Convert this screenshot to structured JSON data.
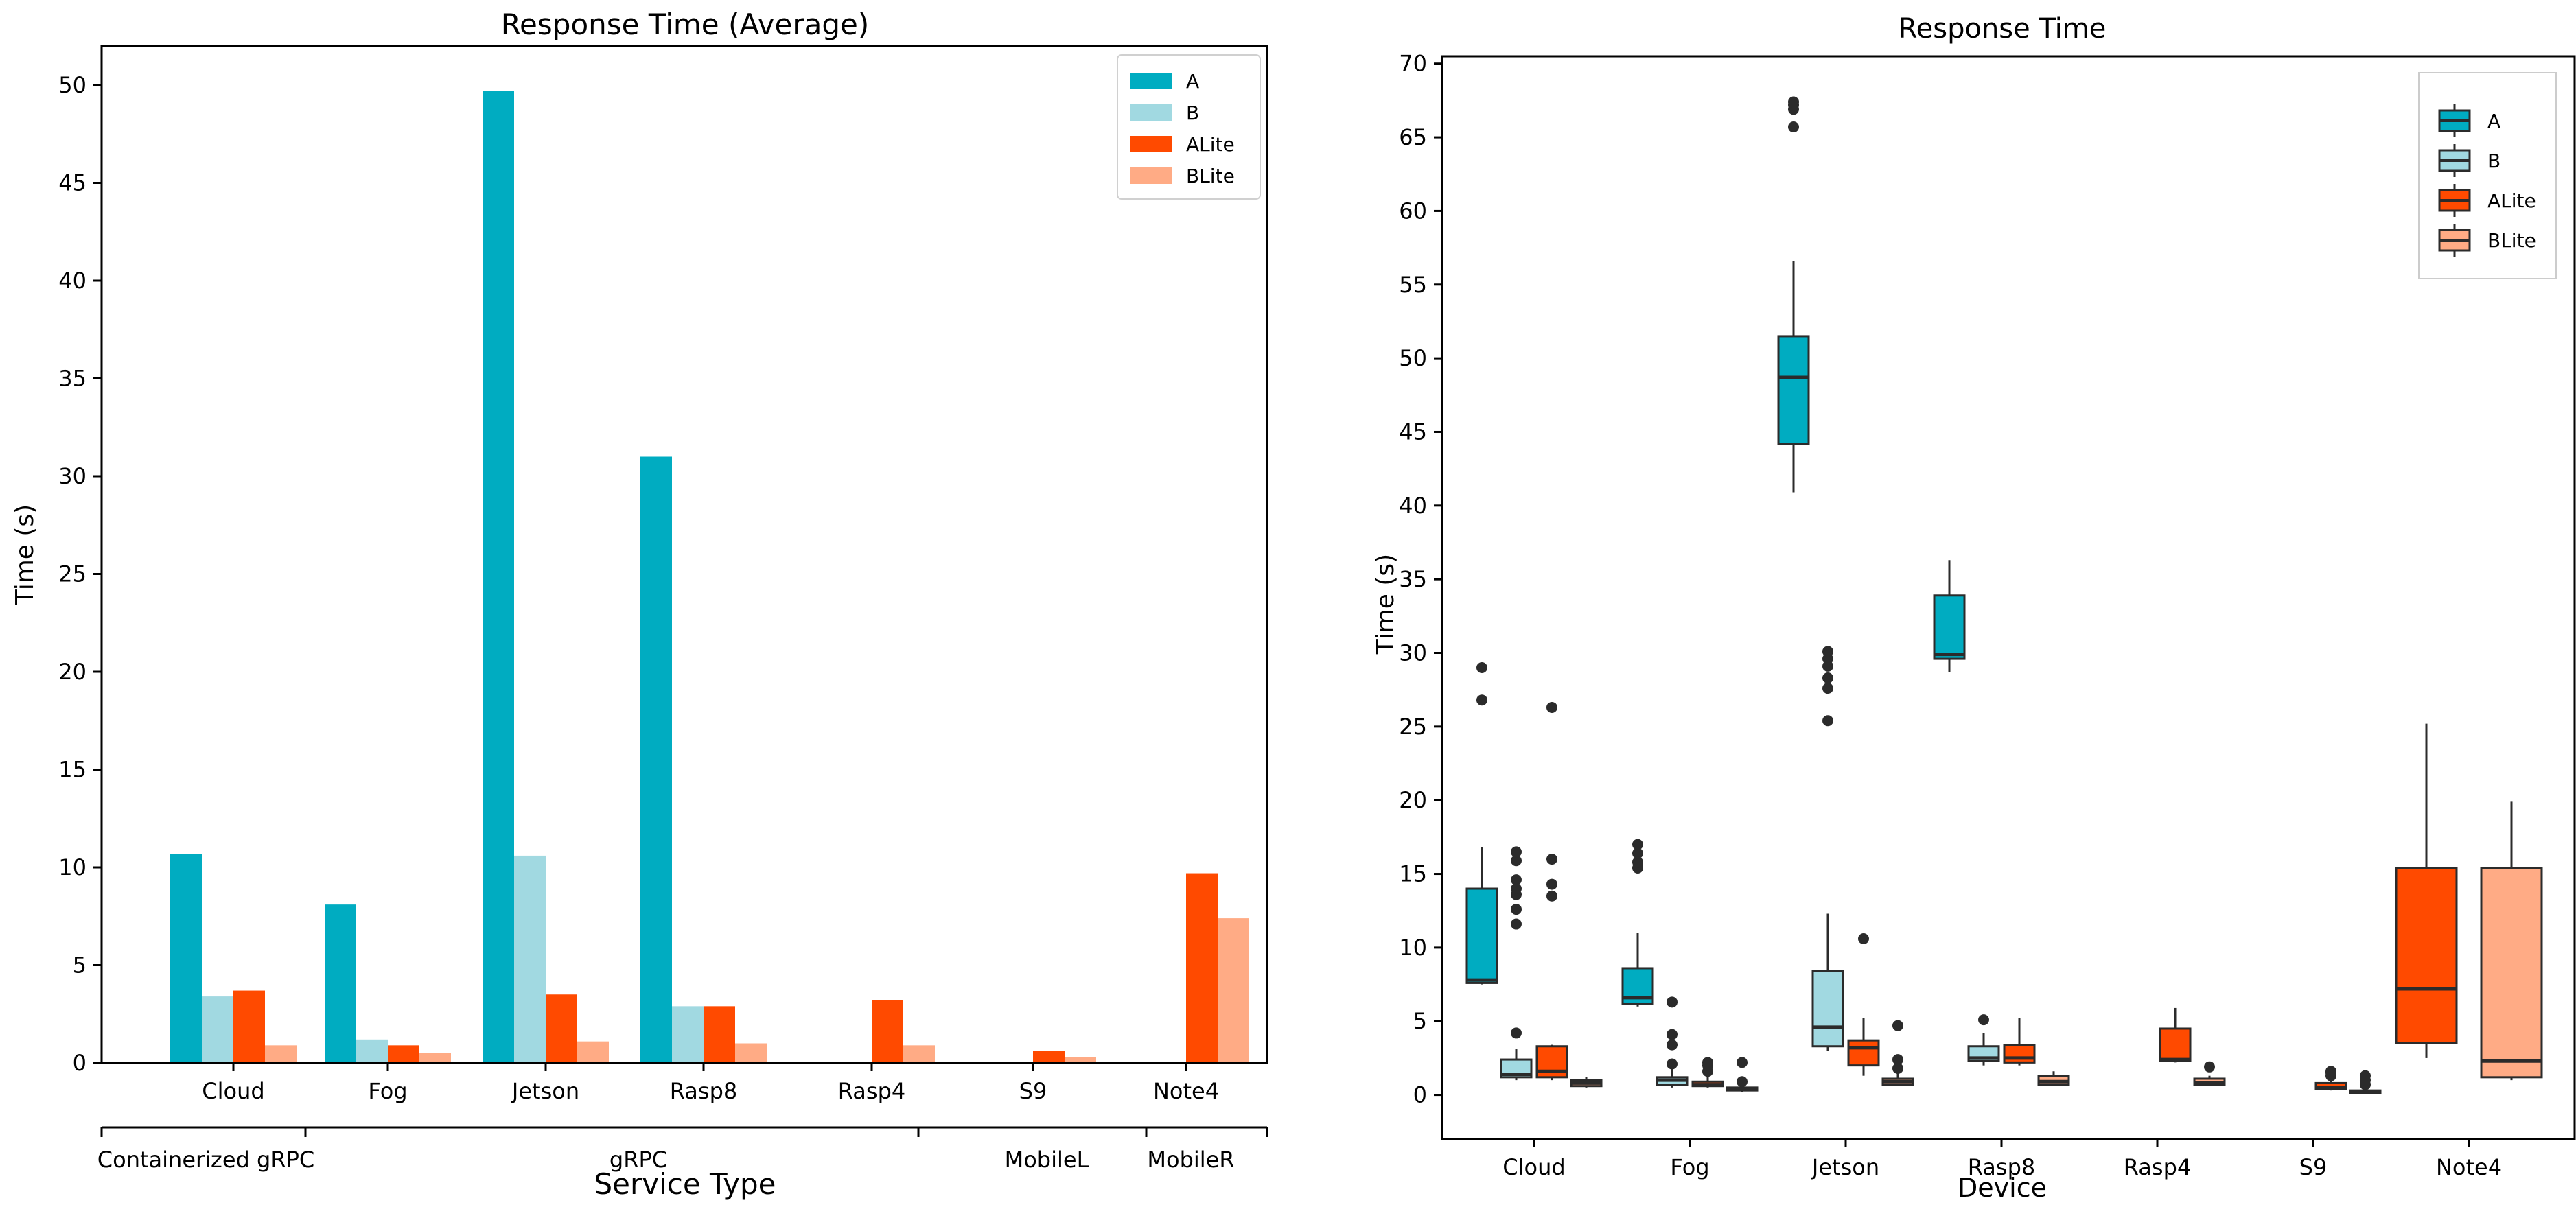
{
  "colors": {
    "A": "#00acc1",
    "B": "#a1d9e1",
    "ALite": "#ff4a00",
    "BLite": "#ffab85",
    "outlier": "#2b2b2b",
    "box_edge": "#2b2b2b"
  },
  "chart_data": [
    {
      "type": "bar",
      "title": "Response Time (Average)",
      "xlabel": "Service Type",
      "ylabel": "Time (s)",
      "ylim": [
        0,
        52
      ],
      "yticks": [
        0,
        5,
        10,
        15,
        20,
        25,
        30,
        35,
        40,
        45,
        50
      ],
      "categories": [
        "Cloud",
        "Fog",
        "Jetson",
        "Rasp8",
        "Rasp4",
        "S9",
        "Note4"
      ],
      "groups": [
        {
          "label": "Containerized gRPC",
          "categories": [
            "Cloud",
            "Fog"
          ]
        },
        {
          "label": "gRPC",
          "categories": [
            "Fog",
            "Jetson",
            "Rasp8",
            "Rasp4"
          ]
        },
        {
          "label": "MobileL",
          "categories": [
            "S9"
          ]
        },
        {
          "label": "MobileR",
          "categories": [
            "Note4"
          ]
        }
      ],
      "legend": {
        "position": "top-right",
        "entries": [
          "A",
          "B",
          "ALite",
          "BLite"
        ]
      },
      "grid": false,
      "series": [
        {
          "name": "A",
          "values": [
            10.7,
            8.1,
            49.7,
            31.0,
            null,
            null,
            null
          ]
        },
        {
          "name": "B",
          "values": [
            3.4,
            1.2,
            10.6,
            2.9,
            null,
            null,
            null
          ]
        },
        {
          "name": "ALite",
          "values": [
            3.7,
            0.9,
            3.5,
            2.9,
            3.2,
            0.6,
            9.7
          ]
        },
        {
          "name": "BLite",
          "values": [
            0.9,
            0.5,
            1.1,
            1.0,
            0.9,
            0.3,
            7.4
          ]
        }
      ]
    },
    {
      "type": "box",
      "title": "Response Time",
      "xlabel": "Device",
      "ylabel": "Time (s)",
      "ylim": [
        -3,
        70.5
      ],
      "yticks": [
        0,
        5,
        10,
        15,
        20,
        25,
        30,
        35,
        40,
        45,
        50,
        55,
        60,
        65,
        70
      ],
      "categories": [
        "Cloud",
        "Fog",
        "Jetson",
        "Rasp8",
        "Rasp4",
        "S9",
        "Note4"
      ],
      "legend": {
        "position": "top-right",
        "entries": [
          "A",
          "B",
          "ALite",
          "BLite"
        ]
      },
      "grid": false,
      "series": [
        {
          "name": "A",
          "boxes": [
            {
              "min": 7.5,
              "q1": 7.6,
              "median": 7.8,
              "q3": 14.0,
              "max": 16.8,
              "outliers": [
                26.8,
                29.0
              ]
            },
            {
              "min": 6.0,
              "q1": 6.2,
              "median": 6.6,
              "q3": 8.6,
              "max": 11.0,
              "outliers": [
                15.4,
                15.8,
                16.4,
                17.0
              ]
            },
            {
              "min": 40.9,
              "q1": 44.2,
              "median": 48.7,
              "q3": 51.5,
              "max": 56.6,
              "outliers": [
                65.7,
                66.9,
                67.2,
                67.4
              ]
            },
            {
              "min": 28.7,
              "q1": 29.6,
              "median": 29.9,
              "q3": 33.9,
              "max": 36.3,
              "outliers": []
            },
            null,
            null,
            null
          ]
        },
        {
          "name": "B",
          "boxes": [
            {
              "min": 1.0,
              "q1": 1.2,
              "median": 1.4,
              "q3": 2.4,
              "max": 3.1,
              "outliers": [
                4.2,
                11.6,
                12.6,
                13.6,
                14.0,
                14.6,
                15.9,
                16.5
              ]
            },
            {
              "min": 0.5,
              "q1": 0.7,
              "median": 1.0,
              "q3": 1.2,
              "max": 1.8,
              "outliers": [
                2.1,
                3.4,
                4.1,
                6.3
              ]
            },
            {
              "min": 3.0,
              "q1": 3.3,
              "median": 4.6,
              "q3": 8.4,
              "max": 12.3,
              "outliers": [
                25.4,
                27.6,
                28.3,
                29.1,
                29.6,
                30.1
              ]
            },
            {
              "min": 2.0,
              "q1": 2.3,
              "median": 2.5,
              "q3": 3.3,
              "max": 4.2,
              "outliers": [
                5.1
              ]
            },
            null,
            null,
            null
          ]
        },
        {
          "name": "ALite",
          "boxes": [
            {
              "min": 1.0,
              "q1": 1.2,
              "median": 1.6,
              "q3": 3.3,
              "max": 3.4,
              "outliers": [
                13.5,
                14.3,
                16.0,
                26.3
              ]
            },
            {
              "min": 0.5,
              "q1": 0.6,
              "median": 0.7,
              "q3": 0.9,
              "max": 1.2,
              "outliers": [
                1.6,
                2.0,
                2.2
              ]
            },
            {
              "min": 1.3,
              "q1": 2.0,
              "median": 3.2,
              "q3": 3.7,
              "max": 5.2,
              "outliers": [
                10.6
              ]
            },
            {
              "min": 2.0,
              "q1": 2.2,
              "median": 2.5,
              "q3": 3.4,
              "max": 5.2,
              "outliers": []
            },
            {
              "min": 2.2,
              "q1": 2.3,
              "median": 2.4,
              "q3": 4.5,
              "max": 5.9,
              "outliers": []
            },
            {
              "min": 0.3,
              "q1": 0.4,
              "median": 0.5,
              "q3": 0.8,
              "max": 1.0,
              "outliers": [
                1.3,
                1.5,
                1.6
              ]
            },
            {
              "min": 2.5,
              "q1": 3.5,
              "median": 7.2,
              "q3": 15.4,
              "max": 25.2,
              "outliers": []
            }
          ]
        },
        {
          "name": "BLite",
          "boxes": [
            {
              "min": 0.5,
              "q1": 0.6,
              "median": 0.8,
              "q3": 1.0,
              "max": 1.2,
              "outliers": []
            },
            {
              "min": 0.2,
              "q1": 0.3,
              "median": 0.4,
              "q3": 0.5,
              "max": 0.7,
              "outliers": [
                0.9,
                2.2
              ]
            },
            {
              "min": 0.6,
              "q1": 0.7,
              "median": 0.9,
              "q3": 1.1,
              "max": 1.5,
              "outliers": [
                1.8,
                2.4,
                4.7
              ]
            },
            {
              "min": 0.6,
              "q1": 0.7,
              "median": 0.9,
              "q3": 1.3,
              "max": 1.6,
              "outliers": []
            },
            {
              "min": 0.6,
              "q1": 0.7,
              "median": 0.8,
              "q3": 1.1,
              "max": 1.3,
              "outliers": [
                1.9
              ]
            },
            {
              "min": 0.1,
              "q1": 0.1,
              "median": 0.2,
              "q3": 0.3,
              "max": 0.4,
              "outliers": [
                0.7,
                1.0,
                1.3
              ]
            },
            {
              "min": 1.0,
              "q1": 1.2,
              "median": 2.3,
              "q3": 15.4,
              "max": 19.9,
              "outliers": []
            }
          ]
        }
      ]
    }
  ]
}
